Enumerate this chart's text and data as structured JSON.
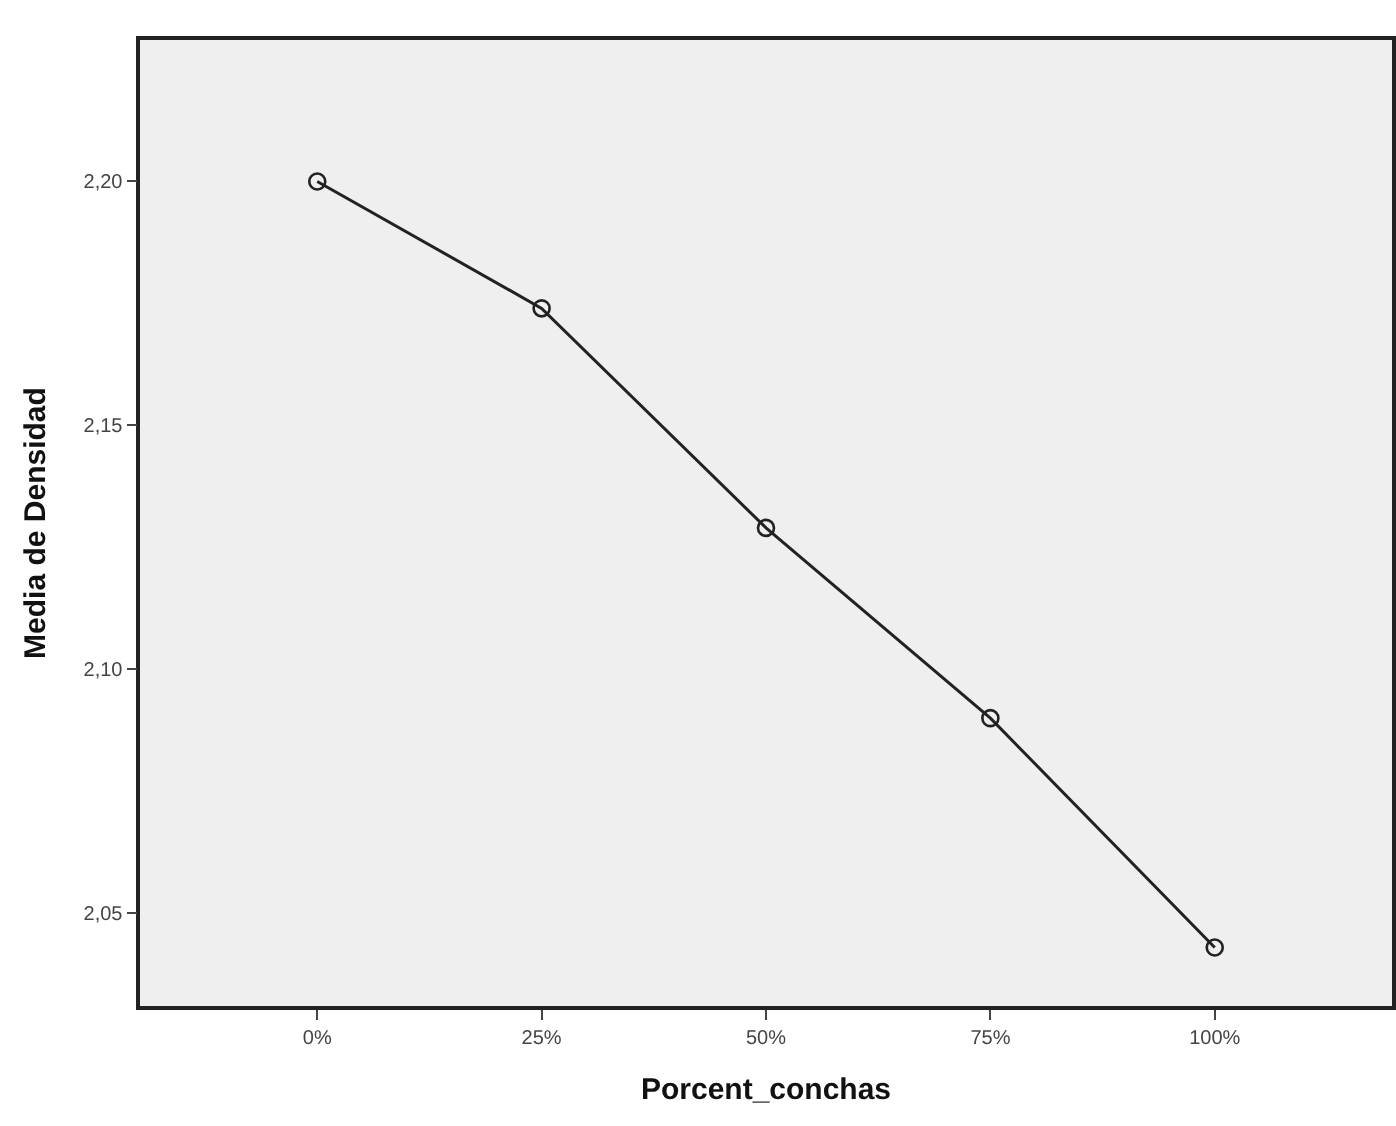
{
  "chart_data": {
    "type": "line",
    "xlabel": "Porcent_conchas",
    "ylabel": "Media de Densidad",
    "categories": [
      "0%",
      "25%",
      "50%",
      "75%",
      "100%"
    ],
    "series": [
      {
        "color": "#222222",
        "values": [
          2.2,
          2.174,
          2.129,
          2.09,
          2.043
        ]
      }
    ],
    "ylim": [
      2.031,
      2.229
    ],
    "yticks": [
      {
        "value": 2.05,
        "label": "2,05"
      },
      {
        "value": 2.1,
        "label": "2,10"
      },
      {
        "value": 2.15,
        "label": "2,15"
      },
      {
        "value": 2.2,
        "label": "2,20"
      }
    ],
    "marker": "circle",
    "line_style": "solid"
  }
}
